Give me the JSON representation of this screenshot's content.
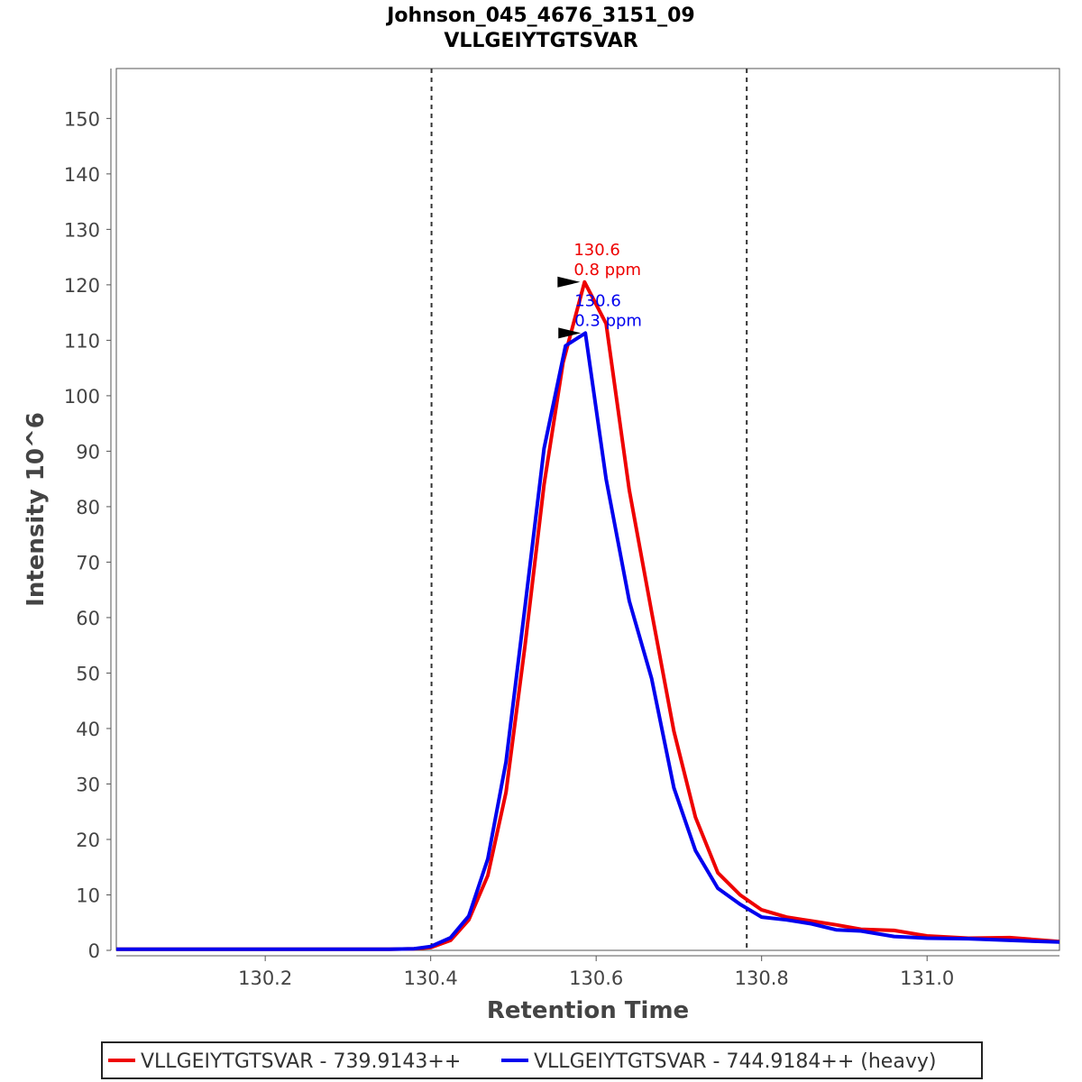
{
  "chart_data": {
    "type": "line",
    "title": "Johnson_045_4676_3151_09",
    "subtitle": "VLLGEIYTGTSVAR",
    "xlabel": "Retention Time",
    "ylabel": "Intensity 10^6",
    "xlim": [
      130.02,
      131.16
    ],
    "ylim": [
      0,
      159
    ],
    "xticks": [
      130.2,
      130.4,
      130.6,
      130.8,
      131.0
    ],
    "xtick_labels": [
      "130.2",
      "130.4",
      "130.6",
      "130.8",
      "131.0"
    ],
    "yticks": [
      0,
      10,
      20,
      30,
      40,
      50,
      60,
      70,
      80,
      90,
      100,
      110,
      120,
      130,
      140,
      150
    ],
    "ytick_labels": [
      "0",
      "10",
      "20",
      "30",
      "40",
      "50",
      "60",
      "70",
      "80",
      "90",
      "100",
      "110",
      "120",
      "130",
      "140",
      "150"
    ],
    "boundaries": [
      130.401,
      130.782
    ],
    "series": [
      {
        "name": "VLLGEIYTGTSVAR - 739.9143++",
        "color": "#ee0000",
        "x": [
          130.02,
          130.1,
          130.2,
          130.3,
          130.35,
          130.38,
          130.4,
          130.424,
          130.446,
          130.469,
          130.491,
          130.514,
          130.537,
          130.56,
          130.586,
          130.612,
          130.64,
          130.667,
          130.694,
          130.72,
          130.747,
          130.774,
          130.8,
          130.83,
          130.86,
          130.89,
          130.92,
          130.96,
          131.0,
          131.05,
          131.1,
          131.16
        ],
        "y": [
          0.2,
          0.2,
          0.2,
          0.2,
          0.2,
          0.3,
          0.5,
          1.8,
          5.5,
          13.5,
          28.5,
          55,
          84,
          106,
          120.5,
          113,
          83,
          61,
          39.5,
          24,
          14,
          10,
          7.3,
          6,
          5.3,
          4.6,
          3.8,
          3.6,
          2.6,
          2.2,
          2.3,
          1.6
        ]
      },
      {
        "name": "VLLGEIYTGTSVAR - 744.9184++ (heavy)",
        "color": "#0000ee",
        "x": [
          130.02,
          130.1,
          130.2,
          130.3,
          130.35,
          130.38,
          130.4,
          130.424,
          130.446,
          130.469,
          130.491,
          130.514,
          130.537,
          130.563,
          130.587,
          130.612,
          130.64,
          130.667,
          130.694,
          130.72,
          130.747,
          130.774,
          130.8,
          130.83,
          130.86,
          130.89,
          130.92,
          130.96,
          131.0,
          131.05,
          131.1,
          131.16
        ],
        "y": [
          0.2,
          0.2,
          0.2,
          0.2,
          0.2,
          0.3,
          0.7,
          2.3,
          6.2,
          16.5,
          34,
          62,
          90.5,
          109,
          111.3,
          85,
          63,
          49,
          29.3,
          18,
          11.2,
          8.3,
          6,
          5.5,
          4.8,
          3.7,
          3.5,
          2.5,
          2.2,
          2.1,
          1.8,
          1.5
        ]
      }
    ],
    "annotations": [
      {
        "series": 0,
        "x": 130.586,
        "y": 120.5,
        "lines": [
          "130.6",
          "0.8 ppm"
        ],
        "color": "#ee0000"
      },
      {
        "series": 1,
        "x": 130.587,
        "y": 111.3,
        "lines": [
          "130.6",
          "0.3 ppm"
        ],
        "color": "#0000ee"
      }
    ],
    "legend_position": "bottom",
    "grid": false
  }
}
